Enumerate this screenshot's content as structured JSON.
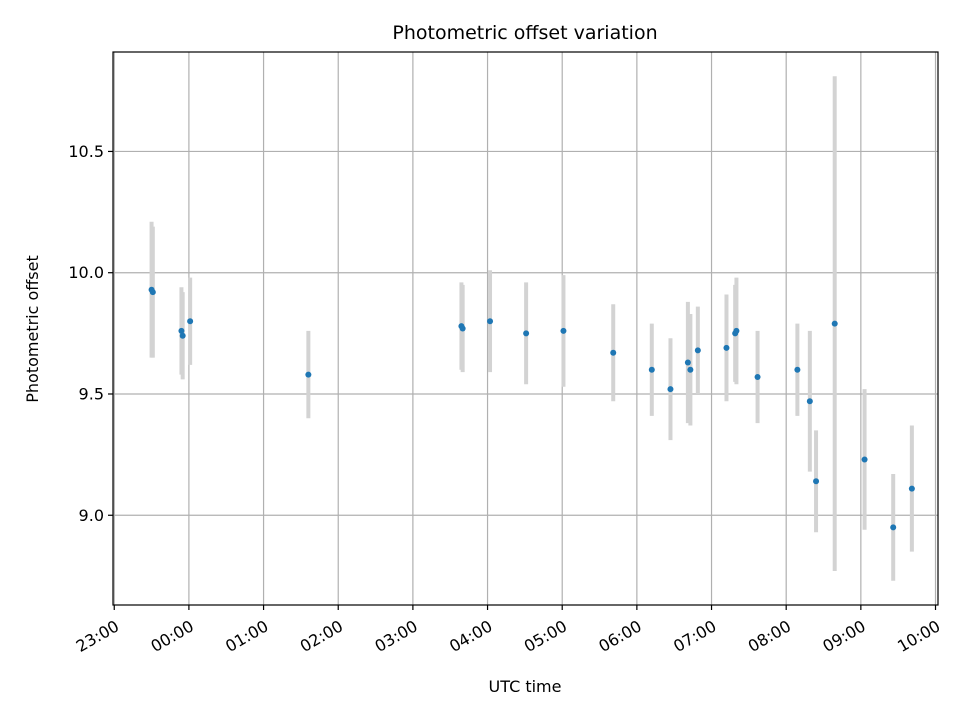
{
  "chart_data": {
    "type": "scatter",
    "title": "Photometric offset variation",
    "xlabel": "UTC time",
    "ylabel": "Photometric offset",
    "x_tick_labels": [
      "23:00",
      "00:00",
      "01:00",
      "02:00",
      "03:00",
      "04:00",
      "05:00",
      "06:00",
      "07:00",
      "08:00",
      "09:00",
      "10:00"
    ],
    "y_ticks": [
      9.0,
      9.5,
      10.0,
      10.5
    ],
    "y_tick_labels": [
      "9.0",
      "9.5",
      "10.0",
      "10.5"
    ],
    "xlim": [
      "22:59",
      "10:02"
    ],
    "ylim": [
      8.63,
      10.91
    ],
    "grid": true,
    "point_color": "#1f77b4",
    "errorbar_color": "#d3d3d3",
    "series": [
      {
        "points": [
          {
            "x": "23:30",
            "y": 9.93,
            "err": 0.28
          },
          {
            "x": "23:31",
            "y": 9.92,
            "err": 0.27
          },
          {
            "x": "23:54",
            "y": 9.76,
            "err": 0.18
          },
          {
            "x": "23:55",
            "y": 9.74,
            "err": 0.18
          },
          {
            "x": "00:01",
            "y": 9.8,
            "err": 0.18
          },
          {
            "x": "01:36",
            "y": 9.58,
            "err": 0.18
          },
          {
            "x": "03:39",
            "y": 9.78,
            "err": 0.18
          },
          {
            "x": "03:40",
            "y": 9.77,
            "err": 0.18
          },
          {
            "x": "04:02",
            "y": 9.8,
            "err": 0.21
          },
          {
            "x": "04:31",
            "y": 9.75,
            "err": 0.21
          },
          {
            "x": "05:01",
            "y": 9.76,
            "err": 0.23
          },
          {
            "x": "05:41",
            "y": 9.67,
            "err": 0.2
          },
          {
            "x": "06:12",
            "y": 9.6,
            "err": 0.19
          },
          {
            "x": "06:27",
            "y": 9.52,
            "err": 0.21
          },
          {
            "x": "06:41",
            "y": 9.63,
            "err": 0.25
          },
          {
            "x": "06:43",
            "y": 9.6,
            "err": 0.23
          },
          {
            "x": "06:49",
            "y": 9.68,
            "err": 0.18
          },
          {
            "x": "07:12",
            "y": 9.69,
            "err": 0.22
          },
          {
            "x": "07:19",
            "y": 9.75,
            "err": 0.2
          },
          {
            "x": "07:20",
            "y": 9.76,
            "err": 0.22
          },
          {
            "x": "07:37",
            "y": 9.57,
            "err": 0.19
          },
          {
            "x": "08:09",
            "y": 9.6,
            "err": 0.19
          },
          {
            "x": "08:19",
            "y": 9.47,
            "err": 0.29
          },
          {
            "x": "08:24",
            "y": 9.14,
            "err": 0.21
          },
          {
            "x": "08:39",
            "y": 9.79,
            "err": 1.02
          },
          {
            "x": "09:03",
            "y": 9.23,
            "err": 0.29
          },
          {
            "x": "09:26",
            "y": 8.95,
            "err": 0.22
          },
          {
            "x": "09:41",
            "y": 9.11,
            "err": 0.26
          }
        ]
      }
    ]
  }
}
